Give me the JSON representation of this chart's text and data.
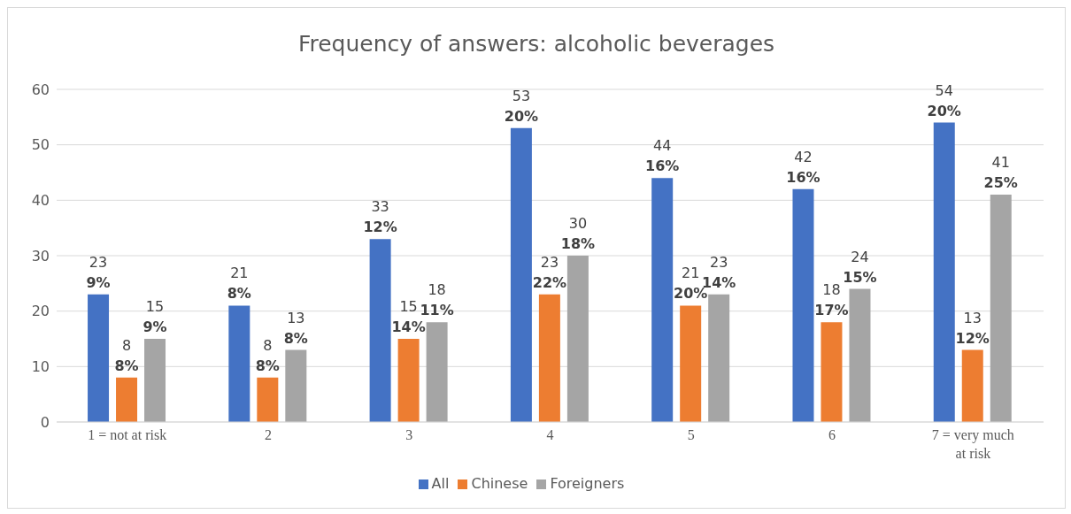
{
  "chart_data": {
    "type": "bar",
    "title": "Frequency of answers: alcoholic beverages",
    "categories": [
      "1 = not at risk",
      "2",
      "3",
      "4",
      "5",
      "6",
      "7 = very much at risk"
    ],
    "series": [
      {
        "name": "All",
        "color": "#4472c4",
        "values": [
          23,
          21,
          33,
          53,
          44,
          42,
          54
        ]
      },
      {
        "name": "Chinese",
        "color": "#ed7d31",
        "values": [
          8,
          8,
          15,
          23,
          21,
          18,
          13
        ]
      },
      {
        "name": "Foreigners",
        "color": "#a5a5a5",
        "values": [
          15,
          13,
          18,
          30,
          23,
          24,
          41
        ]
      }
    ],
    "annotations": [
      "9%",
      "8%",
      "12%",
      "20%",
      "16%",
      "16%",
      "20%",
      "8%",
      "8%",
      "14%",
      "22%",
      "20%",
      "17%",
      "12%",
      "9%",
      "8%",
      "11%",
      "18%",
      "14%",
      "15%",
      "25%"
    ],
    "ylim": [
      0,
      60
    ],
    "yticks": [
      0,
      10,
      20,
      30,
      40,
      50,
      60
    ],
    "grid": "y",
    "legend": "bottom",
    "data_labels": true
  }
}
